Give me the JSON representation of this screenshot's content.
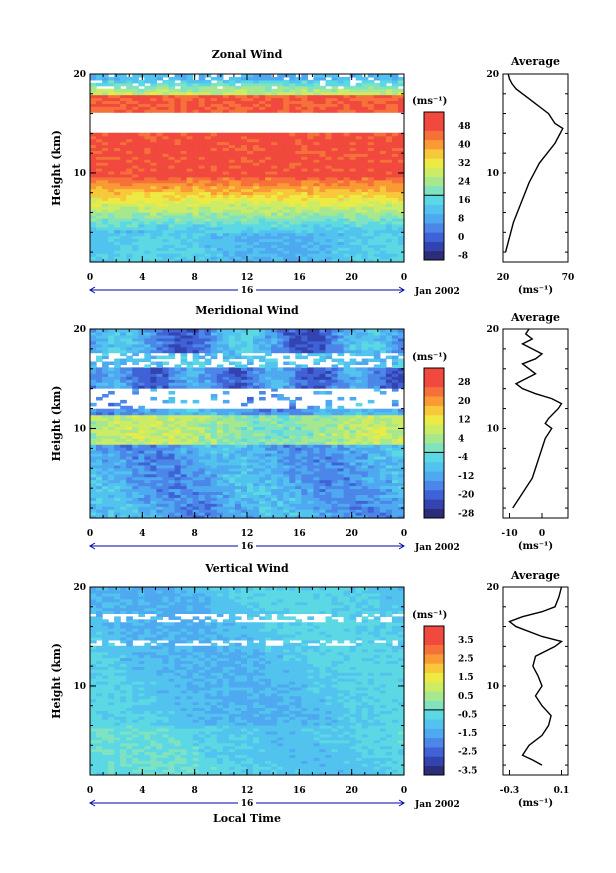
{
  "chart_data": [
    {
      "type": "heatmap",
      "title": "Zonal Wind",
      "ylabel": "Height (km)",
      "yticks": [
        "20",
        "10"
      ],
      "ylim": [
        1,
        20
      ],
      "xticks": [
        "0",
        "4",
        "8",
        "12",
        "16",
        "20",
        "0"
      ],
      "xlim": [
        0,
        24
      ],
      "date_day": "16",
      "date_label": "Jan 2002",
      "colorbar": {
        "unit": "(ms⁻¹)",
        "labels": [
          "48",
          "40",
          "32",
          "24",
          "16",
          "8",
          "0",
          "-8"
        ],
        "levels": [
          -8,
          -4,
          0,
          4,
          8,
          12,
          16,
          20,
          24,
          28,
          32,
          36,
          40,
          44,
          48,
          52
        ]
      },
      "profile": {
        "title": "Average",
        "xticks": [
          "20",
          "70"
        ],
        "xlim": [
          20,
          70
        ],
        "ylim": [
          1,
          20
        ],
        "yticks": [
          "20",
          "10"
        ],
        "xlabel": "(ms⁻¹)",
        "points": [
          [
            22,
            2
          ],
          [
            24,
            3
          ],
          [
            26,
            4
          ],
          [
            28,
            5
          ],
          [
            31,
            6
          ],
          [
            34,
            7
          ],
          [
            37,
            8
          ],
          [
            40,
            9
          ],
          [
            44,
            10
          ],
          [
            48,
            11
          ],
          [
            54,
            12
          ],
          [
            60,
            13
          ],
          [
            64,
            14
          ],
          [
            66,
            14.5
          ],
          [
            60,
            15
          ],
          [
            55,
            16
          ],
          [
            50,
            16.5
          ],
          [
            45,
            17
          ],
          [
            40,
            17.5
          ],
          [
            35,
            18
          ],
          [
            30,
            18.5
          ],
          [
            27,
            19
          ],
          [
            25,
            19.5
          ],
          [
            24,
            20
          ]
        ]
      }
    },
    {
      "type": "heatmap",
      "title": "Meridional Wind",
      "ylabel": "Height (km)",
      "yticks": [
        "20",
        "10"
      ],
      "ylim": [
        1,
        20
      ],
      "xticks": [
        "0",
        "4",
        "8",
        "12",
        "16",
        "20",
        "0"
      ],
      "xlim": [
        0,
        24
      ],
      "date_day": "16",
      "date_label": "Jan 2002",
      "colorbar": {
        "unit": "(ms⁻¹)",
        "labels": [
          "28",
          "20",
          "12",
          "4",
          "-4",
          "-12",
          "-20",
          "-28"
        ],
        "levels": [
          -28,
          -24,
          -20,
          -16,
          -12,
          -8,
          -4,
          0,
          4,
          8,
          12,
          16,
          20,
          24,
          28,
          32
        ]
      },
      "profile": {
        "title": "Average",
        "xticks": [
          "-10",
          "0"
        ],
        "xlim": [
          -12,
          8
        ],
        "ylim": [
          1,
          20
        ],
        "yticks": [
          "20",
          "10"
        ],
        "xlabel": "(ms⁻¹)",
        "points": [
          [
            -9,
            2
          ],
          [
            -7,
            3
          ],
          [
            -5,
            4
          ],
          [
            -3,
            5
          ],
          [
            -2,
            6
          ],
          [
            -1,
            7
          ],
          [
            0,
            8
          ],
          [
            1,
            9
          ],
          [
            3,
            10
          ],
          [
            1,
            10.5
          ],
          [
            2,
            11
          ],
          [
            5,
            12
          ],
          [
            6,
            12.5
          ],
          [
            3,
            13
          ],
          [
            -2,
            13.5
          ],
          [
            -6,
            14
          ],
          [
            -8,
            14.5
          ],
          [
            -5,
            15
          ],
          [
            -2,
            15.5
          ],
          [
            -4,
            16
          ],
          [
            -6,
            16.5
          ],
          [
            -2,
            17
          ],
          [
            0,
            17.5
          ],
          [
            -3,
            18
          ],
          [
            -6,
            18.5
          ],
          [
            -3,
            19
          ],
          [
            -5,
            19.5
          ],
          [
            -4,
            20
          ]
        ]
      }
    },
    {
      "type": "heatmap",
      "title": "Vertical Wind",
      "ylabel": "Height (km)",
      "yticks": [
        "20",
        "10"
      ],
      "ylim": [
        1,
        20
      ],
      "xticks": [
        "0",
        "4",
        "8",
        "12",
        "16",
        "20",
        "0"
      ],
      "xlim": [
        0,
        24
      ],
      "date_day": "16",
      "date_label": "Jan 2002",
      "xlabel": "Local Time",
      "colorbar": {
        "unit": "(ms⁻¹)",
        "labels": [
          "3.5",
          "2.5",
          "1.5",
          "0.5",
          "-0.5",
          "-1.5",
          "-2.5",
          "-3.5"
        ],
        "levels": [
          -3.5,
          -3.0,
          -2.5,
          -2.0,
          -1.5,
          -1.0,
          -0.5,
          0.0,
          0.5,
          1.0,
          1.5,
          2.0,
          2.5,
          3.0,
          3.5,
          4.0
        ]
      },
      "profile": {
        "title": "Average",
        "xticks": [
          "-0.3",
          "0.1"
        ],
        "xlim": [
          -0.35,
          0.15
        ],
        "ylim": [
          1,
          20
        ],
        "yticks": [
          "20",
          "10"
        ],
        "xlabel": "(ms⁻¹)",
        "points": [
          [
            -0.05,
            2
          ],
          [
            -0.12,
            2.5
          ],
          [
            -0.2,
            3
          ],
          [
            -0.15,
            4
          ],
          [
            -0.05,
            5
          ],
          [
            0.0,
            6
          ],
          [
            0.02,
            7
          ],
          [
            -0.05,
            8
          ],
          [
            -0.1,
            9
          ],
          [
            -0.05,
            10
          ],
          [
            -0.08,
            11
          ],
          [
            -0.12,
            12
          ],
          [
            -0.1,
            13
          ],
          [
            0.05,
            14
          ],
          [
            0.1,
            14.5
          ],
          [
            -0.05,
            15
          ],
          [
            -0.25,
            16
          ],
          [
            -0.3,
            16.5
          ],
          [
            -0.2,
            17
          ],
          [
            -0.05,
            17.5
          ],
          [
            0.05,
            18
          ],
          [
            0.08,
            19
          ],
          [
            0.1,
            20
          ]
        ]
      }
    }
  ],
  "colors": {
    "palette": [
      "#2c2c78",
      "#3343b0",
      "#3f63d6",
      "#4b86e8",
      "#4fa9f0",
      "#52c3ef",
      "#5bd8e3",
      "#7fe2c0",
      "#a7e88e",
      "#ccec66",
      "#eeea44",
      "#f7c93a",
      "#f99a35",
      "#f6703a",
      "#f1493e",
      "#f1493e"
    ],
    "gap": "#ffffff"
  }
}
